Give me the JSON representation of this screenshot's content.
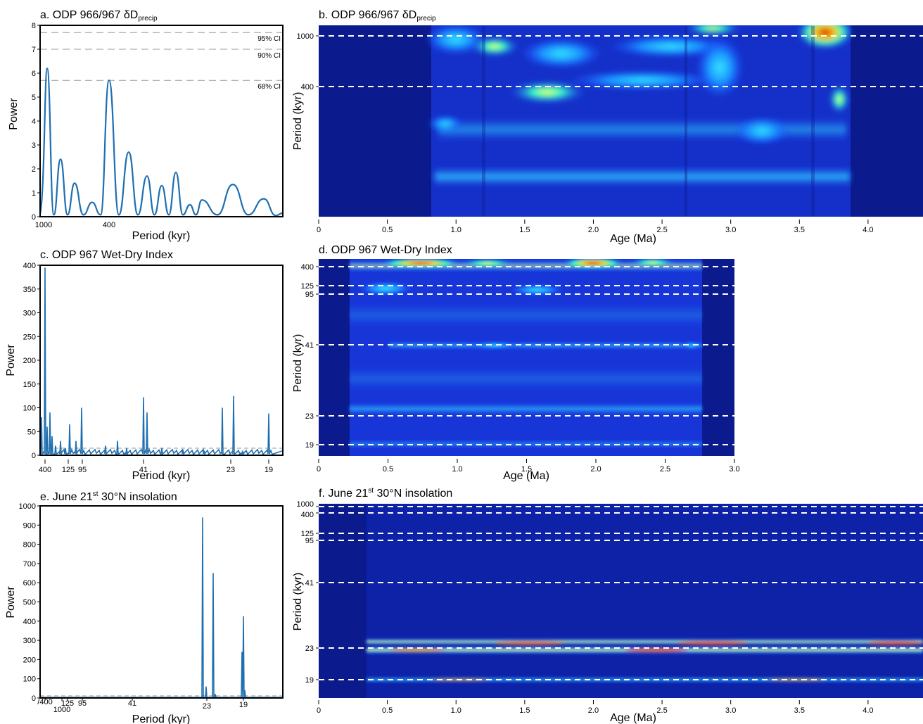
{
  "colors": {
    "line": "#1f6fb0",
    "frame": "#000000",
    "ci_dash": "#9a9a9a",
    "wavelet_background": "#0b1a8c",
    "ref_line": "#ffffff"
  },
  "chart_data": [
    {
      "id": "a",
      "type": "line",
      "title": "a. ODP 966/967 δD",
      "title_sub": "precip",
      "xlabel": "Period (kyr)",
      "ylabel": "Power",
      "xticks": [
        "1000",
        "400"
      ],
      "ylim": [
        0,
        8
      ],
      "yticks": [
        "0",
        "1",
        "2",
        "3",
        "4",
        "5",
        "6",
        "7",
        "8"
      ],
      "ci": [
        {
          "label": "95% CI",
          "value": 7.7
        },
        {
          "label": "90% CI",
          "value": 7.0
        },
        {
          "label": "68% CI",
          "value": 5.7
        }
      ],
      "series": [
        {
          "x": [
            1000,
            700,
            500,
            400,
            300,
            250,
            200,
            167,
            143,
            125,
            111,
            100,
            90
          ],
          "peaks": [
            6.2,
            2.4,
            1.4,
            0.6,
            5.7,
            2.7,
            1.7,
            1.3,
            1.85,
            0.5,
            0.7,
            1.35,
            0.75
          ]
        }
      ]
    },
    {
      "id": "b",
      "type": "heatmap",
      "title": "b. ODP 966/967 δD",
      "title_sub": "precip",
      "xlabel": "Age (Ma)",
      "ylabel": "Period (kyr)",
      "xticks": [
        "0",
        "0.5",
        "1.0",
        "1.5",
        "2.0",
        "2.5",
        "3.0",
        "3.5",
        "4.0"
      ],
      "xlim": [
        0,
        4.4
      ],
      "yticks": [
        "1000",
        "400"
      ],
      "ref_periods": [
        1000,
        400
      ],
      "data_range": [
        0.83,
        3.85
      ]
    },
    {
      "id": "c",
      "type": "line",
      "title": "c. ODP 967 Wet-Dry Index",
      "xlabel": "Period (kyr)",
      "ylabel": "Power",
      "xticks": [
        "400",
        "125",
        "95",
        "41",
        "23",
        "19"
      ],
      "ylim": [
        0,
        400
      ],
      "yticks": [
        "0",
        "50",
        "100",
        "150",
        "200",
        "250",
        "300",
        "350",
        "400"
      ],
      "series": [
        {
          "x": [
            400,
            125,
            95,
            41,
            40,
            23,
            22,
            19
          ],
          "peaks": [
            395,
            65,
            100,
            122,
            90,
            100,
            125,
            88
          ]
        }
      ]
    },
    {
      "id": "d",
      "type": "heatmap",
      "title": "d. ODP 967 Wet-Dry Index",
      "xlabel": "Age (Ma)",
      "ylabel": "Period (kyr)",
      "xticks": [
        "0",
        "0.5",
        "1.0",
        "1.5",
        "2.0",
        "2.5",
        "3.0"
      ],
      "xlim": [
        0,
        3.0
      ],
      "yticks": [
        "400",
        "125",
        "95",
        "41",
        "23",
        "19"
      ],
      "ref_periods": [
        400,
        125,
        95,
        41,
        23,
        19
      ],
      "data_range": [
        0.22,
        2.77
      ]
    },
    {
      "id": "e",
      "type": "line",
      "title": "e. June 21",
      "title_sup": "st",
      "title_rest": " 30°N insolation",
      "xlabel": "Period (kyr)",
      "ylabel": "Power",
      "xticks": [
        "/400",
        "1000",
        "125",
        "95",
        "41",
        "23",
        "19"
      ],
      "ylim": [
        0,
        1000
      ],
      "yticks": [
        "0",
        "100",
        "200",
        "300",
        "400",
        "500",
        "600",
        "700",
        "800",
        "900",
        "1000"
      ],
      "series": [
        {
          "x": [
            24,
            23,
            19
          ],
          "peaks": [
            940,
            650,
            425
          ]
        }
      ]
    },
    {
      "id": "f",
      "type": "heatmap",
      "title": "f. June 21",
      "title_sup": "st",
      "title_rest": " 30°N insolation",
      "xlabel": "Age (Ma)",
      "ylabel": "Period (kyr)",
      "xticks": [
        "0",
        "0.5",
        "1.0",
        "1.5",
        "2.0",
        "2.5",
        "3.0",
        "3.5",
        "4.0"
      ],
      "xlim": [
        0,
        4.4
      ],
      "yticks": [
        "1000",
        "400",
        "125",
        "95",
        "41",
        "23",
        "19"
      ],
      "ref_periods": [
        1000,
        400,
        125,
        95,
        41,
        23,
        19
      ],
      "data_range": [
        0.35,
        4.4
      ]
    }
  ]
}
